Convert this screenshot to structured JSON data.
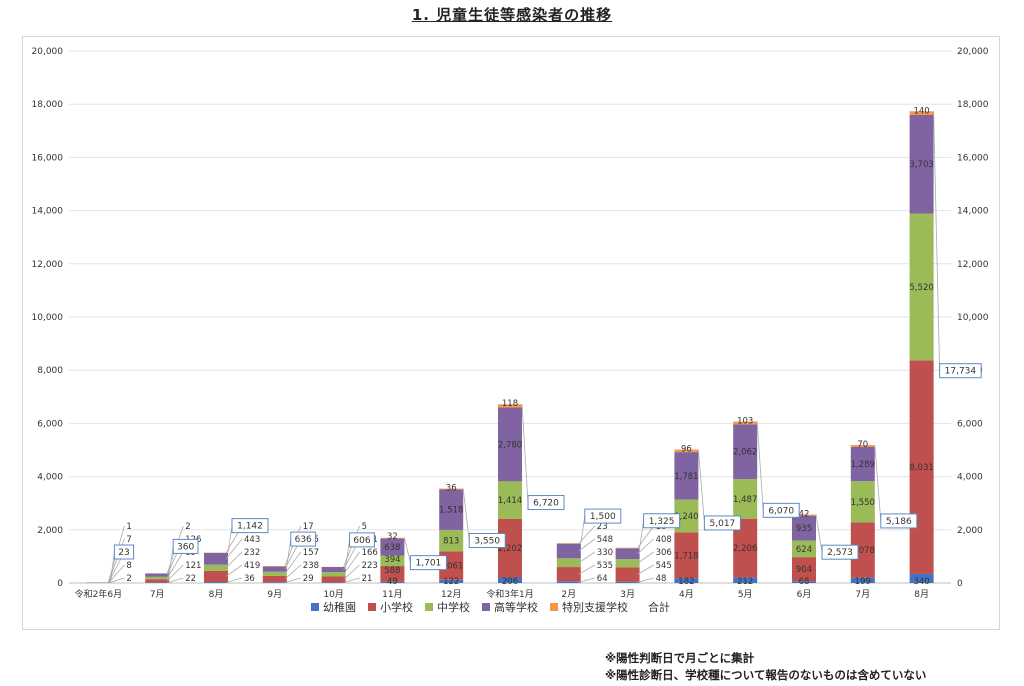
{
  "title": "1. 児童生徒等感染者の推移",
  "notes": [
    "※陽性判断日で月ごとに集計",
    "※陽性診断日、学校種について報告のないものは含めていない"
  ],
  "legend": {
    "total_label": "合計"
  },
  "chart_data": {
    "type": "bar",
    "stacked": true,
    "title": "1. 児童生徒等感染者の推移",
    "categories": [
      "令和2年6月",
      "7月",
      "8月",
      "9月",
      "10月",
      "11月",
      "12月",
      "令和3年1月",
      "2月",
      "3月",
      "4月",
      "5月",
      "6月",
      "7月",
      "8月"
    ],
    "series": [
      {
        "name": "幼稚園",
        "color": "#4472c4",
        "values": [
          2,
          22,
          36,
          29,
          21,
          49,
          122,
          206,
          64,
          48,
          182,
          212,
          68,
          199,
          340
        ]
      },
      {
        "name": "小学校",
        "color": "#c0504d",
        "values": [
          8,
          121,
          419,
          238,
          223,
          588,
          1061,
          2202,
          535,
          545,
          1718,
          2206,
          904,
          2078,
          8031
        ]
      },
      {
        "name": "中学校",
        "color": "#9bbb59",
        "values": [
          5,
          89,
          232,
          157,
          166,
          394,
          813,
          1414,
          330,
          306,
          1240,
          1487,
          624,
          1550,
          5520
        ]
      },
      {
        "name": "高等学校",
        "color": "#8064a2",
        "values": [
          7,
          126,
          443,
          195,
          191,
          638,
          1518,
          2780,
          548,
          408,
          1781,
          2062,
          935,
          1289,
          3703
        ]
      },
      {
        "name": "特別支援学校",
        "color": "#f79646",
        "values": [
          1,
          2,
          12,
          17,
          5,
          32,
          36,
          118,
          23,
          18,
          96,
          103,
          42,
          70,
          140
        ]
      }
    ],
    "totals": [
      23,
      360,
      1142,
      636,
      606,
      1701,
      3550,
      6720,
      1500,
      1325,
      5017,
      6070,
      2573,
      5186,
      17734
    ],
    "total_name": "合計",
    "ylim": [
      0,
      20000
    ],
    "yticks": [
      0,
      2000,
      4000,
      6000,
      8000,
      10000,
      12000,
      14000,
      16000,
      18000,
      20000
    ],
    "secondary_y_axis": true,
    "grid": true,
    "legend_position": "bottom"
  }
}
